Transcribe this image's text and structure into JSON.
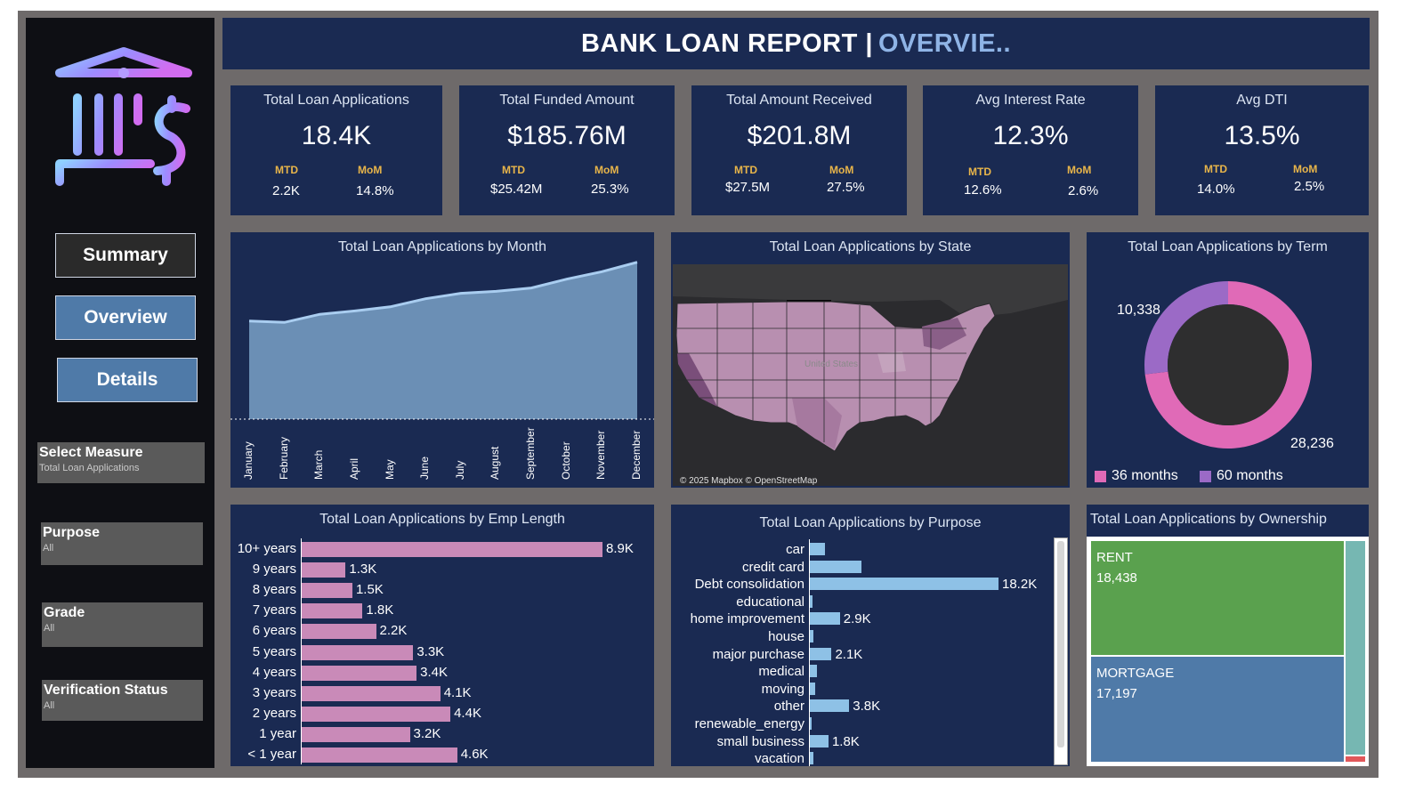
{
  "header": {
    "title_main": "BANK LOAN REPORT |",
    "title_accent": "OVERVIE.."
  },
  "nav": {
    "summary": "Summary",
    "overview": "Overview",
    "details": "Details"
  },
  "filters": [
    {
      "label": "Select Measure",
      "value": "Total Loan Applications"
    },
    {
      "label": "Purpose",
      "value": "All"
    },
    {
      "label": "Grade",
      "value": "All"
    },
    {
      "label": "Verification Status",
      "value": "All"
    }
  ],
  "kpis": [
    {
      "title": "Total Loan Applications",
      "value": "18.4K",
      "mtd_label": "MTD",
      "mom_label": "MoM",
      "mtd": "2.2K",
      "mom": "14.8%"
    },
    {
      "title": "Total Funded Amount",
      "value": "$185.76M",
      "mtd_label": "MTD",
      "mom_label": "MoM",
      "mtd": "$25.42M",
      "mom": "25.3%"
    },
    {
      "title": "Total Amount Received",
      "value": "$201.8M",
      "mtd_label": "MTD",
      "mom_label": "MoM",
      "mtd": "$27.5M",
      "mom": "27.5%"
    },
    {
      "title": "Avg Interest Rate",
      "value": "12.3%",
      "mtd_label": "MTD",
      "mom_label": "MoM",
      "mtd": "12.6%",
      "mom": "2.6%"
    },
    {
      "title": "Avg DTI",
      "value": "13.5%",
      "mtd_label": "MTD",
      "mom_label": "MoM",
      "mtd": "14.0%",
      "mom": "2.5%"
    }
  ],
  "panels": {
    "month": "Total Loan Applications by Month",
    "state": "Total Loan Applications by State",
    "term": "Total Loan Applications by Term",
    "emp": "Total Loan Applications by Emp Length",
    "purpose": "Total Loan Applications by Purpose",
    "ownership": "Total Loan Applications by Ownership"
  },
  "map": {
    "attribution": "© 2025 Mapbox © OpenStreetMap",
    "country_label": "United States"
  },
  "colors": {
    "accent": "#8fb4e6",
    "panel": "#1a2a52",
    "pink": "#e06ab7",
    "purple": "#9b6ac6",
    "bar_pink": "#c98ab8",
    "bar_blue": "#8ec1e6",
    "rent": "#5aa14e",
    "mortgage": "#4f7aa8"
  },
  "chart_data": [
    {
      "type": "area",
      "title": "Total Loan Applications by Month",
      "categories": [
        "January",
        "February",
        "March",
        "April",
        "May",
        "June",
        "July",
        "August",
        "September",
        "October",
        "November",
        "December"
      ],
      "values": [
        1.45,
        1.43,
        1.55,
        1.6,
        1.66,
        1.78,
        1.86,
        1.89,
        1.94,
        2.07,
        2.18,
        2.32
      ],
      "ylim": [
        0,
        2.5
      ]
    },
    {
      "type": "pie",
      "title": "Total Loan Applications by Term",
      "labels": [
        "36 months",
        "60 months"
      ],
      "values": [
        28236,
        10338
      ],
      "value_labels": [
        "28,236",
        "10,338"
      ],
      "legend": "bottom"
    },
    {
      "type": "bar",
      "title": "Total Loan Applications by Emp Length",
      "categories": [
        "10+ years",
        "9 years",
        "8 years",
        "7 years",
        "6 years",
        "5 years",
        "4 years",
        "3 years",
        "2 years",
        "1 year",
        "< 1 year"
      ],
      "values": [
        8.9,
        1.3,
        1.5,
        1.8,
        2.2,
        3.3,
        3.4,
        4.1,
        4.4,
        3.2,
        4.6
      ],
      "value_labels": [
        "8.9K",
        "1.3K",
        "1.5K",
        "1.8K",
        "2.2K",
        "3.3K",
        "3.4K",
        "4.1K",
        "4.4K",
        "3.2K",
        "4.6K"
      ]
    },
    {
      "type": "bar",
      "title": "Total Loan Applications by Purpose",
      "categories": [
        "car",
        "credit card",
        "Debt consolidation",
        "educational",
        "home improvement",
        "house",
        "major purchase",
        "medical",
        "moving",
        "other",
        "renewable_energy",
        "small business",
        "vacation"
      ],
      "values": [
        1.5,
        5.0,
        18.2,
        0.3,
        2.9,
        0.35,
        2.1,
        0.65,
        0.55,
        3.8,
        0.1,
        1.8,
        0.35
      ],
      "value_labels": [
        "",
        "",
        "18.2K",
        "",
        "2.9K",
        "",
        "2.1K",
        "",
        "",
        "3.8K",
        "",
        "1.8K",
        ""
      ]
    },
    {
      "type": "table",
      "title": "Total Loan Applications by Ownership",
      "categories": [
        "RENT",
        "MORTGAGE"
      ],
      "values": [
        18438,
        17197
      ],
      "value_labels": [
        "18,438",
        "17,197"
      ]
    }
  ]
}
